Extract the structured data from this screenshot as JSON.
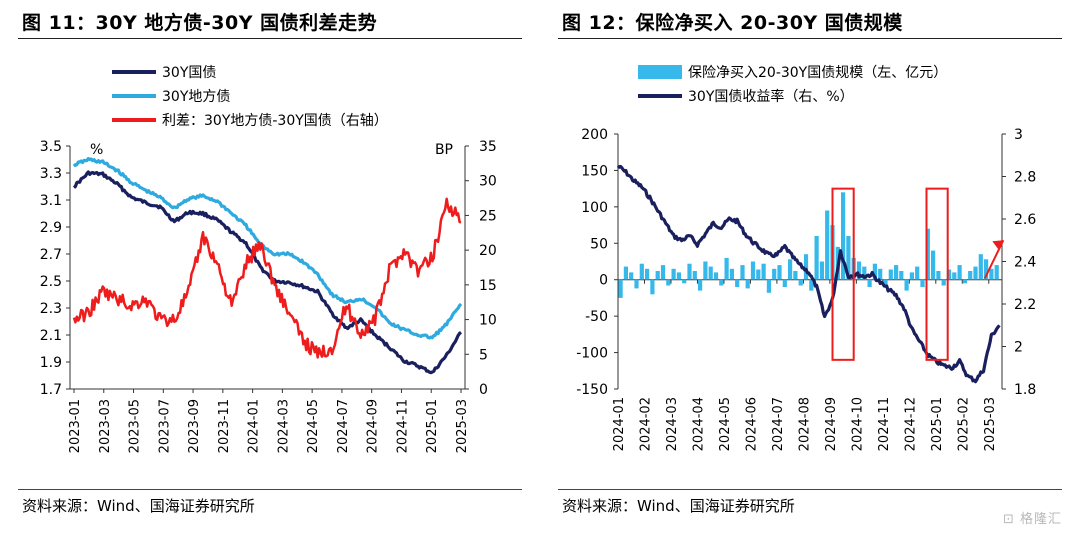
{
  "left": {
    "title": "图 11：30Y 地方债-30Y 国债利差走势",
    "source": "资料来源：Wind、国海证券研究所",
    "legend": [
      {
        "label": "30Y国债",
        "color": "#1a1f5e"
      },
      {
        "label": "30Y地方债",
        "color": "#2eaadf"
      },
      {
        "label": "利差：30Y地方债-30Y国债（右轴）",
        "color": "#ee1c1c"
      }
    ],
    "chart_data": {
      "type": "line",
      "x_ticks": [
        "2023-01",
        "2023-03",
        "2023-05",
        "2023-07",
        "2023-09",
        "2023-11",
        "2024-01",
        "2024-03",
        "2024-05",
        "2024-07",
        "2024-09",
        "2024-11",
        "2025-01",
        "2025-03"
      ],
      "y_left": {
        "unit": "%",
        "range": [
          1.7,
          3.5
        ],
        "ticks": [
          "3.5",
          "3.3",
          "3.1",
          "2.9",
          "2.7",
          "2.5",
          "2.3",
          "2.1",
          "1.9",
          "1.7"
        ]
      },
      "y_right": {
        "unit": "BP",
        "range": [
          0,
          35
        ],
        "ticks": [
          "35",
          "30",
          "25",
          "20",
          "15",
          "10",
          "5",
          "0"
        ]
      },
      "x_index_range": [
        0,
        27
      ],
      "series": [
        {
          "name": "30Y国债",
          "color": "#1a1f5e",
          "axis": "left",
          "x": [
            0,
            1,
            2,
            3,
            4,
            5,
            6,
            7,
            8,
            9,
            10,
            11,
            12,
            13,
            14,
            15,
            16,
            17,
            18,
            19,
            20,
            21,
            22,
            23,
            24,
            25,
            26,
            27
          ],
          "y": [
            3.2,
            3.3,
            3.29,
            3.22,
            3.12,
            3.08,
            3.05,
            2.94,
            3.01,
            3.0,
            2.95,
            2.86,
            2.78,
            2.6,
            2.5,
            2.49,
            2.46,
            2.42,
            2.26,
            2.15,
            2.21,
            2.1,
            2.01,
            1.91,
            1.87,
            1.82,
            1.95,
            2.12
          ]
        },
        {
          "name": "30Y地方债",
          "color": "#2eaadf",
          "axis": "left",
          "x": [
            0,
            1,
            2,
            3,
            4,
            5,
            6,
            7,
            8,
            9,
            10,
            11,
            12,
            13,
            14,
            15,
            16,
            17,
            18,
            19,
            20,
            21,
            22,
            23,
            24,
            25,
            26,
            27
          ],
          "y": [
            3.36,
            3.4,
            3.38,
            3.32,
            3.23,
            3.17,
            3.12,
            3.04,
            3.11,
            3.13,
            3.09,
            3.0,
            2.91,
            2.77,
            2.7,
            2.7,
            2.64,
            2.55,
            2.4,
            2.34,
            2.37,
            2.31,
            2.19,
            2.14,
            2.1,
            2.08,
            2.18,
            2.33
          ]
        },
        {
          "name": "利差：30Y地方债-30Y国债（右轴）",
          "color": "#ee1c1c",
          "axis": "right",
          "x": [
            0,
            1,
            2,
            3,
            4,
            5,
            6,
            7,
            8,
            9,
            10,
            11,
            12,
            13,
            14,
            15,
            16,
            17,
            18,
            19,
            20,
            21,
            22,
            23,
            24,
            25,
            26,
            27
          ],
          "y": [
            10,
            11,
            14,
            13,
            12,
            13,
            10,
            10,
            14,
            22,
            18,
            12,
            18,
            21,
            15,
            11,
            7,
            5,
            6,
            12,
            8,
            10,
            17,
            20,
            17,
            19,
            27,
            24
          ]
        }
      ]
    }
  },
  "right": {
    "title": "图 12：保险净买入 20-30Y 国债规模",
    "source": "资料来源：Wind、国海证券研究所",
    "legend": [
      {
        "label": "保险净买入20-30Y国债规模（左、亿元）",
        "color": "#36b8ea",
        "kind": "bar"
      },
      {
        "label": "30Y国债收益率（右、%）",
        "color": "#1a1f5e",
        "kind": "line"
      }
    ],
    "chart_data": {
      "type": "bar",
      "x_ticks": [
        "2024-01",
        "2024-02",
        "2024-03",
        "2024-04",
        "2024-05",
        "2024-06",
        "2024-07",
        "2024-08",
        "2024-09",
        "2024-10",
        "2024-11",
        "2024-12",
        "2025-01",
        "2025-02",
        "2025-03"
      ],
      "y_left": {
        "range": [
          -150,
          200
        ],
        "ticks": [
          "200",
          "150",
          "100",
          "50",
          "0",
          "-50",
          "-100",
          "-150"
        ]
      },
      "y_right": {
        "range": [
          1.8,
          3.0
        ],
        "ticks": [
          "3",
          "2.8",
          "2.6",
          "2.4",
          "2.2",
          "2",
          "1.8"
        ]
      },
      "x_index_range": [
        0,
        14.5
      ],
      "bars": {
        "name": "保险净买入20-30Y国债规模（左、亿元）",
        "color": "#36b8ea",
        "x": [
          0.1,
          0.3,
          0.5,
          0.7,
          0.9,
          1.1,
          1.3,
          1.5,
          1.7,
          1.9,
          2.1,
          2.3,
          2.5,
          2.7,
          2.9,
          3.1,
          3.3,
          3.5,
          3.7,
          3.9,
          4.1,
          4.3,
          4.5,
          4.7,
          4.9,
          5.1,
          5.3,
          5.5,
          5.7,
          5.9,
          6.1,
          6.3,
          6.5,
          6.7,
          6.9,
          7.1,
          7.3,
          7.5,
          7.7,
          7.9,
          8.1,
          8.3,
          8.5,
          8.7,
          8.9,
          9.1,
          9.3,
          9.5,
          9.7,
          9.9,
          10.1,
          10.3,
          10.5,
          10.7,
          10.9,
          11.1,
          11.3,
          11.5,
          11.7,
          11.9,
          12.1,
          12.3,
          12.5,
          12.7,
          12.9,
          13.1,
          13.3,
          13.5,
          13.7,
          13.9,
          14.1,
          14.3
        ],
        "values": [
          -25,
          18,
          10,
          -12,
          22,
          15,
          -20,
          12,
          20,
          -8,
          15,
          10,
          -5,
          22,
          12,
          -15,
          25,
          18,
          10,
          -8,
          30,
          15,
          -10,
          20,
          -12,
          25,
          14,
          22,
          -18,
          15,
          20,
          -10,
          28,
          12,
          -8,
          35,
          -15,
          60,
          25,
          95,
          75,
          45,
          120,
          60,
          30,
          25,
          18,
          -10,
          22,
          15,
          -8,
          14,
          20,
          12,
          -15,
          10,
          18,
          -10,
          70,
          40,
          12,
          -8,
          14,
          10,
          20,
          -5,
          12,
          18,
          35,
          28,
          15,
          20
        ]
      },
      "line": {
        "name": "30Y国债收益率（右、%）",
        "color": "#1a1f5e",
        "x": [
          0,
          0.3,
          0.6,
          0.9,
          1.2,
          1.5,
          1.8,
          2.1,
          2.4,
          2.7,
          3.0,
          3.3,
          3.6,
          3.9,
          4.2,
          4.5,
          4.8,
          5.1,
          5.4,
          5.7,
          6.0,
          6.3,
          6.6,
          6.9,
          7.2,
          7.5,
          7.8,
          8.1,
          8.4,
          8.7,
          9.0,
          9.3,
          9.6,
          9.9,
          10.2,
          10.5,
          10.8,
          11.1,
          11.4,
          11.7,
          12.0,
          12.3,
          12.6,
          12.9,
          13.2,
          13.5,
          13.8,
          14.1,
          14.4
        ],
        "y": [
          2.85,
          2.82,
          2.78,
          2.75,
          2.7,
          2.64,
          2.58,
          2.52,
          2.5,
          2.52,
          2.48,
          2.53,
          2.58,
          2.56,
          2.6,
          2.59,
          2.53,
          2.49,
          2.46,
          2.43,
          2.43,
          2.47,
          2.42,
          2.38,
          2.35,
          2.28,
          2.14,
          2.22,
          2.45,
          2.33,
          2.34,
          2.33,
          2.34,
          2.3,
          2.27,
          2.24,
          2.18,
          2.08,
          2.02,
          1.96,
          1.93,
          1.91,
          1.9,
          1.93,
          1.86,
          1.84,
          1.89,
          2.05,
          2.1
        ]
      }
    }
  },
  "watermark": "格隆汇"
}
